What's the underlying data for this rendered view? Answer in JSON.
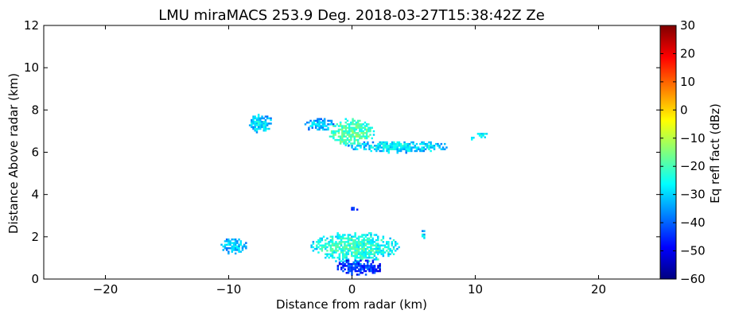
{
  "chart_data": {
    "type": "heatmap",
    "title": "LMU miraMACS 253.9 Deg. 2018-03-27T15:38:42Z  Ze",
    "xlabel": "Distance from radar (km)",
    "ylabel": "Distance Above radar  (km)",
    "xlim": [
      -25,
      25
    ],
    "ylim": [
      0,
      12
    ],
    "x_ticks": [
      -20,
      -10,
      0,
      10,
      20
    ],
    "x_tick_labels": [
      "−20",
      "−10",
      "0",
      "10",
      "20"
    ],
    "y_ticks": [
      0,
      2,
      4,
      6,
      8,
      10,
      12
    ],
    "y_tick_labels": [
      "0",
      "2",
      "4",
      "6",
      "8",
      "10",
      "12"
    ],
    "colorbar": {
      "label": "Eq refl fact (dBz)",
      "range": [
        -60,
        30
      ],
      "ticks": [
        30,
        20,
        10,
        0,
        -10,
        -20,
        -30,
        -40,
        -50,
        -60
      ],
      "tick_labels": [
        "30",
        "20",
        "10",
        "0",
        "−10",
        "−20",
        "−30",
        "−40",
        "−50",
        "−60"
      ],
      "colormap": "jet",
      "colors": [
        "#00007f",
        "#0000ff",
        "#007fff",
        "#00ffff",
        "#7fff7f",
        "#ffff00",
        "#ff7f00",
        "#ff0000",
        "#7f0000"
      ]
    },
    "grid": false,
    "echo_regions": [
      {
        "x": [
          -8.5,
          -6.5
        ],
        "y": [
          6.9,
          7.9
        ],
        "dbz": -28
      },
      {
        "x": [
          -4.0,
          -1.5
        ],
        "y": [
          7.0,
          7.7
        ],
        "dbz": -30
      },
      {
        "x": [
          -2.0,
          1.8
        ],
        "y": [
          6.3,
          7.7
        ],
        "dbz": -18
      },
      {
        "x": [
          -0.5,
          8.0
        ],
        "y": [
          6.0,
          6.6
        ],
        "dbz": -27
      },
      {
        "x": [
          10.0,
          11.0
        ],
        "y": [
          6.7,
          7.0
        ],
        "dbz": -25
      },
      {
        "x": [
          9.5,
          9.9
        ],
        "y": [
          6.6,
          6.9
        ],
        "dbz": -28
      },
      {
        "x": [
          -10.8,
          -8.5
        ],
        "y": [
          1.2,
          2.0
        ],
        "dbz": -30
      },
      {
        "x": [
          -3.5,
          3.8
        ],
        "y": [
          0.8,
          2.3
        ],
        "dbz": -22
      },
      {
        "x": [
          -1.5,
          2.5
        ],
        "y": [
          0.2,
          1.0
        ],
        "dbz": -42
      },
      {
        "x": [
          5.5,
          5.9
        ],
        "y": [
          1.9,
          2.4
        ],
        "dbz": -28
      },
      {
        "x": [
          -0.5,
          0.5
        ],
        "y": [
          3.3,
          3.5
        ],
        "dbz": -40
      }
    ]
  }
}
